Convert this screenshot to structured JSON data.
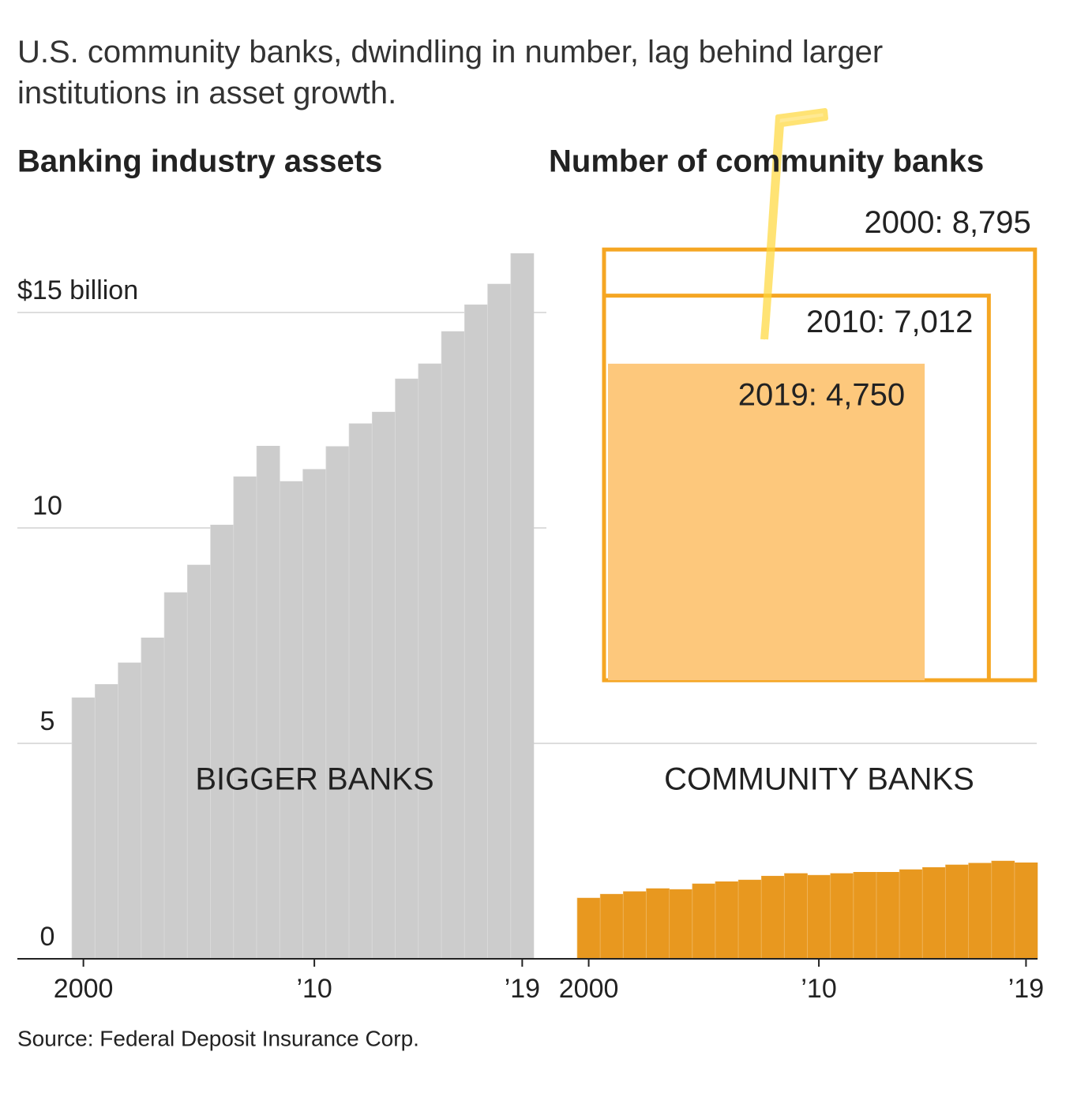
{
  "headline": "U.S. community banks, dwindling in number, lag behind larger institutions in asset growth.",
  "source": "Source: Federal Deposit Insurance Corp.",
  "chart_data": [
    {
      "type": "bar",
      "title": "Banking industry assets",
      "categories": [
        "2000",
        null,
        null,
        null,
        null,
        null,
        null,
        null,
        null,
        null,
        "’10",
        null,
        null,
        null,
        null,
        null,
        null,
        null,
        null,
        "’19"
      ],
      "series": [
        {
          "name": "BIGGER BANKS",
          "color": "#cccccc",
          "values": [
            6.06,
            6.37,
            6.87,
            7.45,
            8.5,
            9.14,
            10.07,
            11.19,
            11.9,
            11.08,
            11.36,
            11.89,
            12.42,
            12.69,
            13.46,
            13.81,
            14.56,
            15.18,
            15.66,
            16.37
          ]
        }
      ],
      "ylim": [
        0,
        17
      ],
      "yticks": [
        0,
        5,
        10,
        {
          "value": 15,
          "label": "$15 billion"
        }
      ],
      "grid": true
    },
    {
      "type": "bar",
      "categories": [
        "2000",
        null,
        null,
        null,
        null,
        null,
        null,
        null,
        null,
        null,
        "’10",
        null,
        null,
        null,
        null,
        null,
        null,
        null,
        null,
        "’19"
      ],
      "series": [
        {
          "name": "COMMUNITY BANKS",
          "color": "#e8981f",
          "values": [
            1.41,
            1.5,
            1.56,
            1.63,
            1.61,
            1.74,
            1.79,
            1.83,
            1.92,
            1.98,
            1.94,
            1.98,
            2.01,
            2.01,
            2.07,
            2.12,
            2.18,
            2.22,
            2.27,
            2.23
          ]
        }
      ],
      "ylim": [
        0,
        17
      ]
    },
    {
      "type": "square",
      "title": "Number of community banks",
      "values": [
        8795,
        7012,
        4750
      ],
      "value_labels": [
        "2000: 8,795",
        "2010: 7,012",
        "2019: 4,750"
      ],
      "colors": [
        "#f5a623",
        "#f5a623",
        "#fdc87c"
      ],
      "filled": [
        false,
        false,
        true
      ]
    }
  ]
}
